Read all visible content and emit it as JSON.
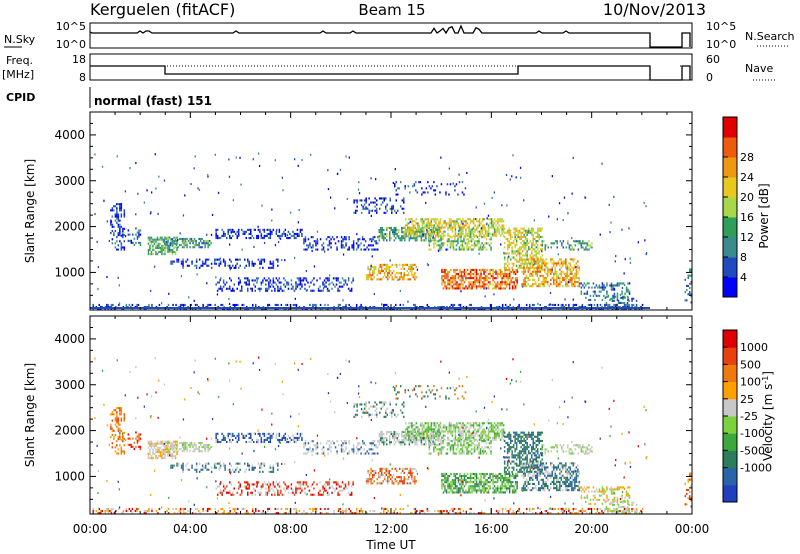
{
  "header": {
    "station": "Kerguelen (fitACF)",
    "beam": "Beam 15",
    "date": "10/Nov/2013"
  },
  "panels": {
    "nsky": {
      "label": "N.Sky",
      "top_tick": "10^5",
      "bottom_tick": "10^0",
      "right_label": "N.Search"
    },
    "freq": {
      "label_line1": "Freq.",
      "label_line2": "[MHz]",
      "top_tick": "18",
      "bottom_tick": "8",
      "right_top_tick": "60",
      "right_bottom_tick": "0",
      "right_label": "Nave"
    },
    "cpid": {
      "label": "CPID",
      "text": "normal (fast) 151"
    }
  },
  "chart_data": [
    {
      "type": "heatmap",
      "name": "power",
      "ylabel": "Slant Range [km]",
      "xlabel": "",
      "yticks": [
        "1000",
        "2000",
        "3000",
        "4000"
      ],
      "ylim": [
        180,
        4500
      ],
      "xlim": [
        0,
        24
      ],
      "colorbar": {
        "label": "Power [dB]",
        "ticks": [
          "4",
          "8",
          "12",
          "16",
          "20",
          "24",
          "28"
        ],
        "colors": [
          "#0000ff",
          "#1e4cbf",
          "#3a8c8c",
          "#2e9e58",
          "#a6d84a",
          "#e6c81e",
          "#ee9a10",
          "#ee5a0e",
          "#e00000"
        ]
      }
    },
    {
      "type": "heatmap",
      "name": "velocity",
      "ylabel": "Slant Range [km]",
      "xlabel": "Time UT",
      "xticks": [
        "00:00",
        "04:00",
        "08:00",
        "12:00",
        "16:00",
        "20:00",
        "00:00"
      ],
      "yticks": [
        "1000",
        "2000",
        "3000",
        "4000"
      ],
      "ylim": [
        180,
        4500
      ],
      "xlim": [
        0,
        24
      ],
      "colorbar": {
        "label": "Velocity [m s^-1]",
        "ticks": [
          "1000",
          "500",
          "100",
          "25",
          "-25",
          "-100",
          "-500",
          "-1000"
        ],
        "colors": [
          "#2040c0",
          "#2a64a8",
          "#2e7d5a",
          "#3ca83c",
          "#7cd23c",
          "#c8c8c8",
          "#ffa000",
          "#ee7a0e",
          "#e84010",
          "#e00000"
        ]
      }
    }
  ]
}
